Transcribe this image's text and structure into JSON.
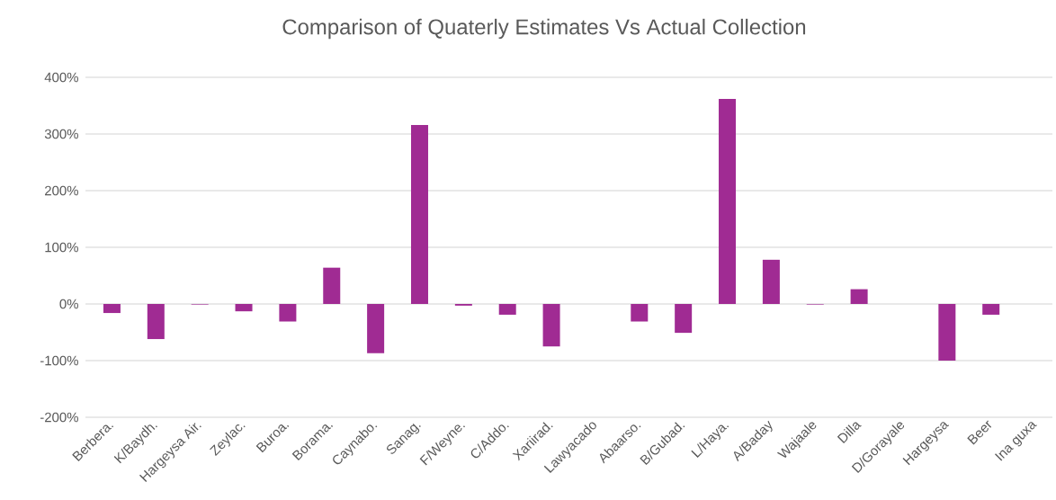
{
  "chart_data": {
    "type": "bar",
    "title": "Comparison of Quaterly Estimates Vs Actual Collection",
    "categories": [
      "Berbera.",
      "K/Baydh.",
      "Hargeysa Air.",
      "Zeylac.",
      "Buroa.",
      "Borama.",
      "Caynabo.",
      "Sanag.",
      "F/Weyne.",
      "C/Addo.",
      "Xariirad.",
      "Lawyacado",
      "Abaarso.",
      "B/Gubad.",
      "L/Haya.",
      "A/Baday",
      "Wajaale",
      "Dilla",
      "D/Gorayale",
      "Hargeysa",
      "Beer",
      "Ina guxa"
    ],
    "values": [
      -16,
      -62,
      -1,
      -13,
      -31,
      64,
      -87,
      316,
      -3,
      -19,
      -75,
      0,
      -31,
      -51,
      362,
      78,
      -1,
      26,
      0,
      -100,
      -19,
      0
    ],
    "color": "#a02b93",
    "ylim": [
      -200,
      400
    ],
    "yticks": [
      {
        "value": -200,
        "label": "-200%"
      },
      {
        "value": -100,
        "label": "-100%"
      },
      {
        "value": 0,
        "label": "0%"
      },
      {
        "value": 100,
        "label": "100%"
      },
      {
        "value": 200,
        "label": "200%"
      },
      {
        "value": 300,
        "label": "300%"
      },
      {
        "value": 400,
        "label": "400%"
      }
    ],
    "grid": "y"
  }
}
